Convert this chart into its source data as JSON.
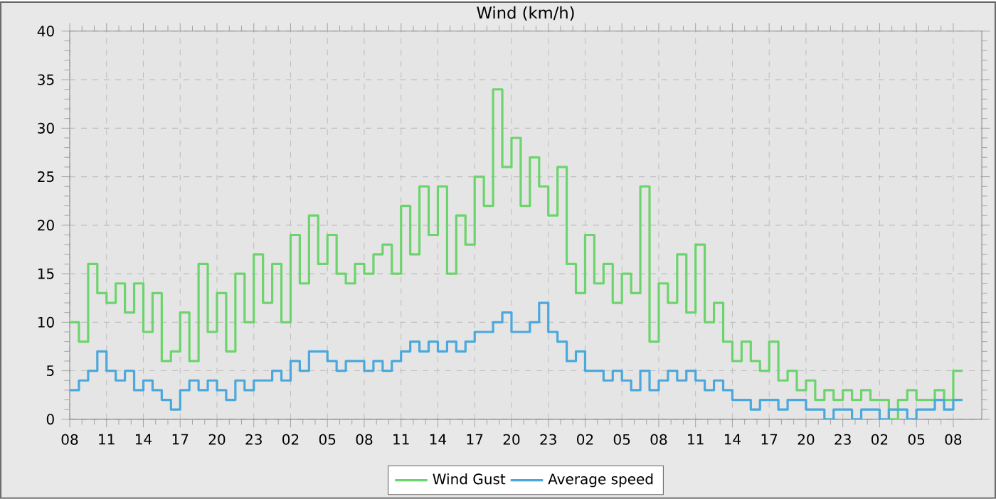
{
  "chart_data": {
    "type": "step",
    "title": "Wind (km/h)",
    "categories": [
      "08",
      null,
      null,
      null,
      "11",
      null,
      null,
      null,
      "14",
      null,
      null,
      null,
      "17",
      null,
      null,
      null,
      "20",
      null,
      null,
      null,
      "23",
      null,
      null,
      null,
      "02",
      null,
      null,
      null,
      "05",
      null,
      null,
      null,
      "08",
      null,
      null,
      null,
      "11",
      null,
      null,
      null,
      "14",
      null,
      null,
      null,
      "17",
      null,
      null,
      null,
      "20",
      null,
      null,
      null,
      "23",
      null,
      null,
      null,
      "02",
      null,
      null,
      null,
      "05",
      null,
      null,
      null,
      "08",
      null,
      null,
      null,
      "11",
      null,
      null,
      null,
      "14",
      null,
      null,
      null,
      "17",
      null,
      null,
      null,
      "20",
      null,
      null,
      null,
      "23",
      null,
      null,
      null,
      "02",
      null,
      null,
      null,
      "05",
      null,
      null,
      null,
      "08",
      null
    ],
    "series": [
      {
        "name": "Wind Gust",
        "color": "#6cd46c",
        "values": [
          10,
          8,
          16,
          13,
          12,
          14,
          11,
          14,
          9,
          13,
          6,
          7,
          11,
          6,
          16,
          9,
          13,
          7,
          15,
          10,
          17,
          12,
          16,
          10,
          19,
          14,
          21,
          16,
          19,
          15,
          14,
          16,
          15,
          17,
          18,
          15,
          22,
          17,
          24,
          19,
          24,
          15,
          21,
          18,
          25,
          22,
          34,
          26,
          29,
          22,
          27,
          24,
          21,
          26,
          16,
          13,
          19,
          14,
          16,
          12,
          15,
          13,
          24,
          8,
          14,
          12,
          17,
          11,
          18,
          10,
          12,
          8,
          6,
          8,
          6,
          5,
          8,
          4,
          5,
          3,
          4,
          2,
          3,
          2,
          3,
          2,
          3,
          2,
          2,
          0,
          2,
          3,
          2,
          2,
          3,
          2,
          5,
          5
        ]
      },
      {
        "name": "Average speed",
        "color": "#4aa8dc",
        "values": [
          3,
          4,
          5,
          7,
          5,
          4,
          5,
          3,
          4,
          3,
          2,
          1,
          3,
          4,
          3,
          4,
          3,
          2,
          4,
          3,
          4,
          4,
          5,
          4,
          6,
          5,
          7,
          7,
          6,
          5,
          6,
          6,
          5,
          6,
          5,
          6,
          7,
          8,
          7,
          8,
          7,
          8,
          7,
          8,
          9,
          9,
          10,
          11,
          9,
          9,
          10,
          12,
          9,
          8,
          6,
          7,
          5,
          5,
          4,
          5,
          4,
          3,
          5,
          3,
          4,
          5,
          4,
          5,
          4,
          3,
          4,
          3,
          2,
          2,
          1,
          2,
          2,
          1,
          2,
          2,
          1,
          1,
          0,
          1,
          1,
          0,
          1,
          1,
          0,
          1,
          1,
          0,
          1,
          1,
          2,
          1,
          2,
          2
        ]
      }
    ],
    "ylim": [
      0,
      40
    ],
    "yticks": [
      0,
      5,
      10,
      15,
      20,
      25,
      30,
      35,
      40
    ],
    "grid": true,
    "legend": "bottom",
    "line_style": "solid",
    "marker": "none"
  }
}
